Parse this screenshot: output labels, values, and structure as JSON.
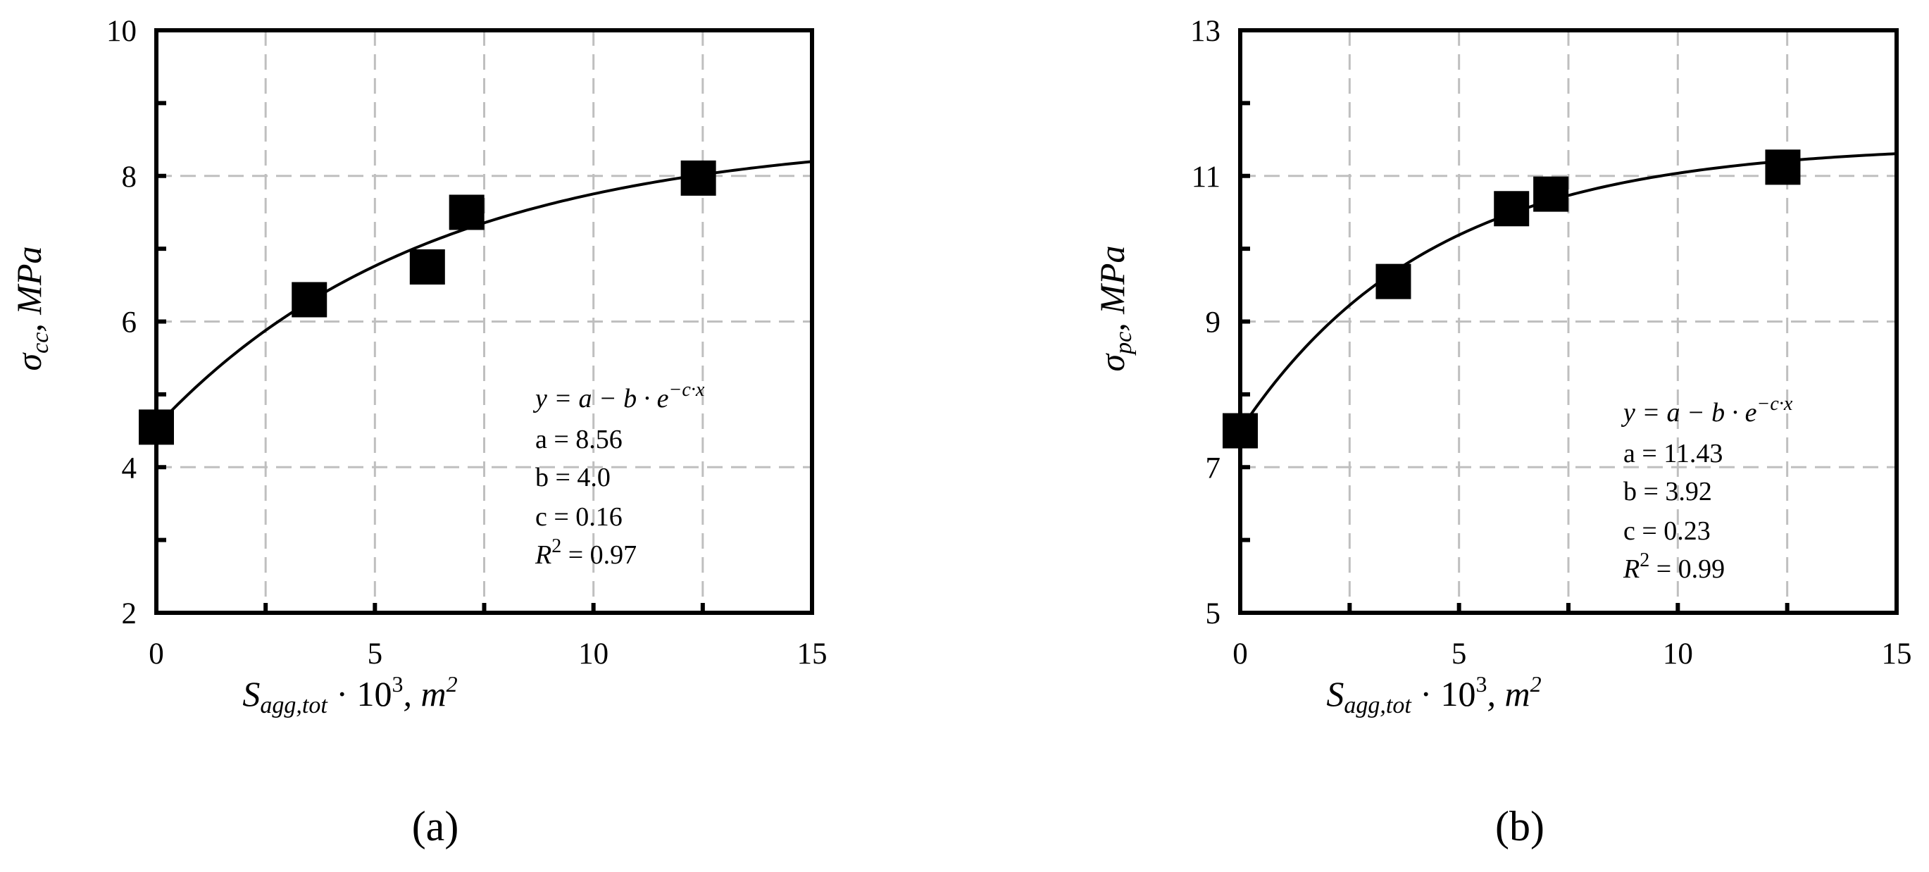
{
  "chart_data": [
    {
      "type": "scatter",
      "panel_label": "(a)",
      "xlabel": "S_{agg,tot} · 10^3, m^2",
      "xlabel_parts": {
        "var": "S",
        "sub": "agg,tot",
        "mid": " · 10",
        "sup1": "3",
        "mid2": ", m",
        "sup2": "2"
      },
      "ylabel": "σ_cc, MPa",
      "ylabel_parts": {
        "var": "σ",
        "sub": "cc",
        "rest": ", MPa"
      },
      "xlim": [
        0,
        15
      ],
      "ylim": [
        2,
        10
      ],
      "xticks": [
        0,
        5,
        10,
        15
      ],
      "yticks": [
        2,
        4,
        6,
        8,
        10
      ],
      "xtick_labels": [
        "0",
        "5",
        "10",
        "15"
      ],
      "ytick_labels": [
        "2",
        "4",
        "6",
        "8",
        "10"
      ],
      "xgrid": [
        2.5,
        5,
        7.5,
        10,
        12.5
      ],
      "ygrid": [
        4,
        6,
        8
      ],
      "grid": true,
      "points": {
        "x": [
          0,
          3.5,
          6.2,
          7.1,
          12.4
        ],
        "y": [
          4.55,
          6.3,
          6.75,
          7.5,
          7.97
        ]
      },
      "fit": {
        "a": 8.56,
        "b": 4.0,
        "c": 0.16
      },
      "annotation": {
        "eq": "y = a − b · e",
        "eq_sup": "−c·x",
        "a": "a = 8.56",
        "b": "b = 4.0",
        "c": "c = 0.16",
        "r2_pre": "R",
        "r2_sup": "2",
        "r2_post": " = 0.97"
      }
    },
    {
      "type": "scatter",
      "panel_label": "(b)",
      "xlabel": "S_{agg,tot} · 10^3, m^2",
      "xlabel_parts": {
        "var": "S",
        "sub": "agg,tot",
        "mid": " · 10",
        "sup1": "3",
        "mid2": ", m",
        "sup2": "2"
      },
      "ylabel": "σ_pc, MPa",
      "ylabel_parts": {
        "var": "σ",
        "sub": "pc",
        "rest": ", MPa"
      },
      "xlim": [
        0,
        15
      ],
      "ylim": [
        5,
        13
      ],
      "xticks": [
        0,
        5,
        10,
        15
      ],
      "yticks": [
        5,
        7,
        9,
        11,
        13
      ],
      "xtick_labels": [
        "0",
        "5",
        "10",
        "15"
      ],
      "ytick_labels": [
        "5",
        "7",
        "9",
        "11",
        "13"
      ],
      "xgrid": [
        2.5,
        5,
        7.5,
        10,
        12.5
      ],
      "ygrid": [
        7,
        9,
        11
      ],
      "grid": true,
      "points": {
        "x": [
          0,
          3.5,
          6.2,
          7.1,
          12.4
        ],
        "y": [
          7.5,
          9.55,
          10.55,
          10.75,
          11.12
        ]
      },
      "fit": {
        "a": 11.43,
        "b": 3.92,
        "c": 0.23
      },
      "annotation": {
        "eq": "y = a − b · e",
        "eq_sup": "−c·x",
        "a": "a = 11.43",
        "b": "b = 3.92",
        "c": "c = 0.23",
        "r2_pre": "R",
        "r2_sup": "2",
        "r2_post": " = 0.99"
      }
    }
  ]
}
